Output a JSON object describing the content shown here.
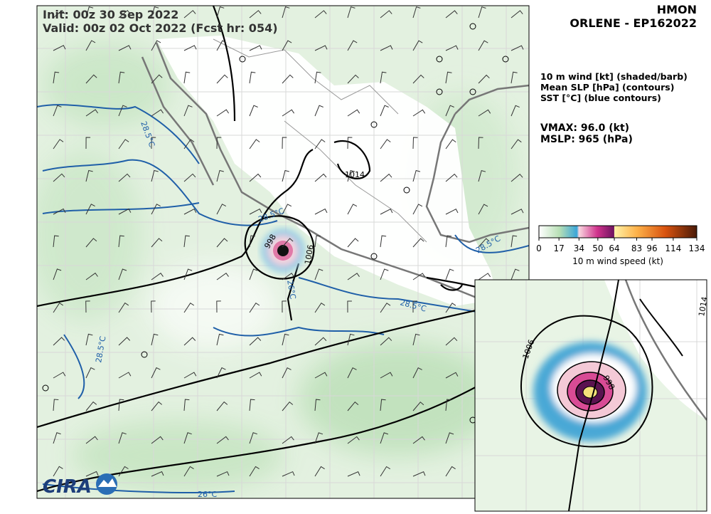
{
  "header": {
    "init": "Init: 00z 30 Sep 2022",
    "valid": "Valid: 00z 02 Oct 2022 (Fcst hr: 054)",
    "model": "HMON",
    "storm": "ORLENE - EP162022"
  },
  "legend": {
    "lines": [
      "10 m wind [kt] (shaded/barb)",
      "Mean SLP [hPa] (contours)",
      "SST [°C] (blue contours)"
    ]
  },
  "stats": [
    "VMAX:  96.0 (kt)",
    "MSLP:  965 (hPa)"
  ],
  "colorbar": {
    "label": "10 m wind speed (kt)",
    "lim": [
      0,
      134
    ],
    "ticks": [
      0,
      17,
      34,
      50,
      64,
      83,
      96,
      114,
      134
    ]
  },
  "contour_labels": {
    "main": [
      "1014",
      "1006",
      "998",
      "28.5°C",
      "28.5°C",
      "28.5°C",
      "26°C",
      "26°C",
      "28.5°C",
      "28.5°C"
    ],
    "inset": [
      "1006",
      "998",
      "1014"
    ]
  },
  "logo": "CIRA"
}
